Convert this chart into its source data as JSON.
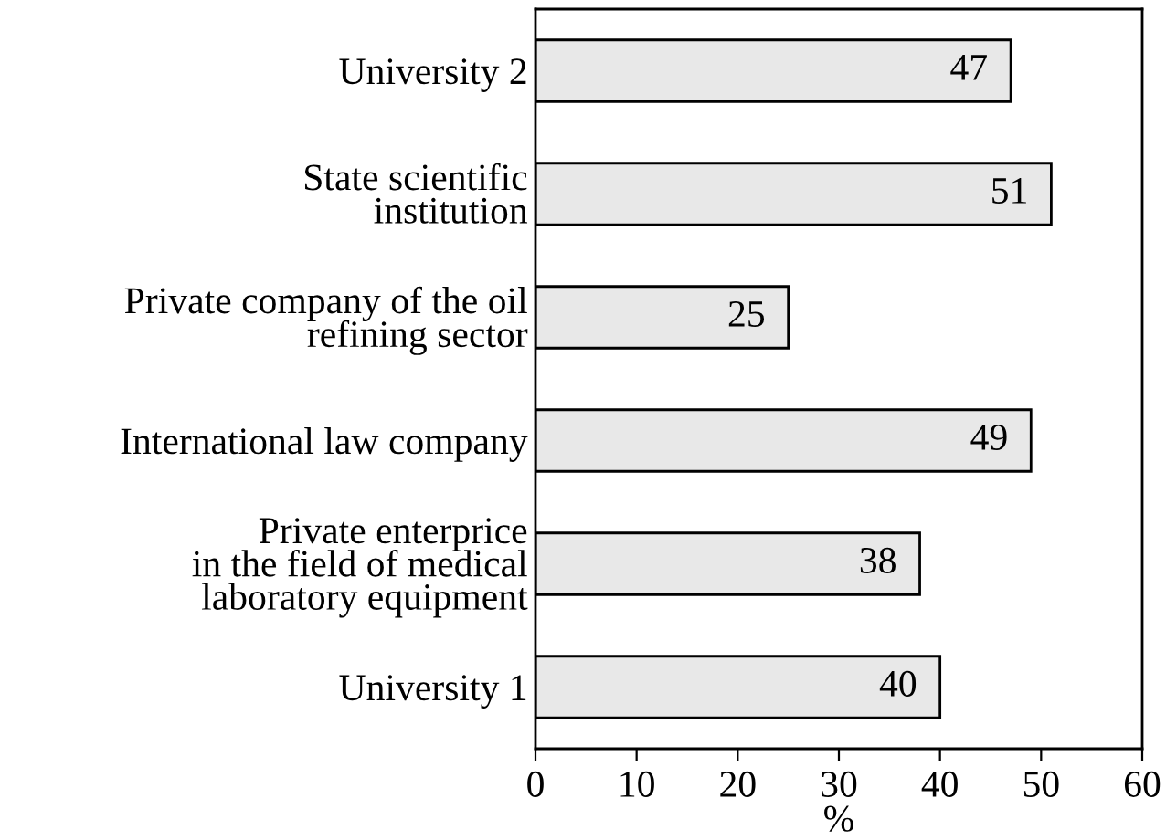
{
  "chart_data": {
    "type": "bar",
    "orientation": "horizontal",
    "xlabel": "%",
    "categories": [
      "University 2",
      "State scientific\ninstitution",
      "Private company of the oil\nrefining sector",
      "International law company",
      "Private enterprice\nin the field of medical\nlaboratory equipment",
      "University 1"
    ],
    "values": [
      47,
      51,
      25,
      49,
      38,
      40
    ],
    "color": "#e8e8e8",
    "xlim": [
      0,
      60
    ],
    "xticks": [
      0,
      10,
      20,
      30,
      40,
      50,
      60
    ],
    "data_labels": true,
    "grid": false,
    "legend": false
  }
}
